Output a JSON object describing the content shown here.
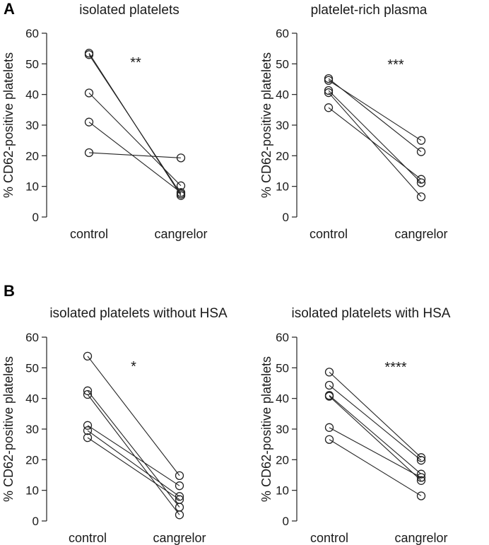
{
  "figure": {
    "panel_labels": [
      "A",
      "B"
    ]
  },
  "chart_data": [
    {
      "type": "scatter",
      "panel": "A",
      "title": "isolated platelets",
      "xlabel": "",
      "ylabel": "% CD62-positive platelets",
      "categories": [
        "control",
        "cangrelor"
      ],
      "ylim": [
        0,
        60
      ],
      "yticks": [
        0,
        10,
        20,
        30,
        40,
        50,
        60
      ],
      "significance": "**",
      "paired_values": [
        [
          53.5,
          7.0
        ],
        [
          53.0,
          7.5
        ],
        [
          40.5,
          10.2
        ],
        [
          31.0,
          8.0
        ],
        [
          21.0,
          19.3
        ]
      ]
    },
    {
      "type": "scatter",
      "panel": "A",
      "title": "platelet-rich plasma",
      "xlabel": "",
      "ylabel": "% CD62-positive platelets",
      "categories": [
        "control",
        "cangrelor"
      ],
      "ylim": [
        0,
        60
      ],
      "yticks": [
        0,
        10,
        20,
        30,
        40,
        50,
        60
      ],
      "significance": "***",
      "paired_values": [
        [
          45.2,
          21.3
        ],
        [
          44.6,
          25.0
        ],
        [
          41.3,
          11.2
        ],
        [
          40.6,
          6.6
        ],
        [
          35.7,
          12.3
        ]
      ]
    },
    {
      "type": "scatter",
      "panel": "B",
      "title": "isolated platelets without HSA",
      "xlabel": "",
      "ylabel": "% CD62-positive platelets",
      "categories": [
        "control",
        "cangrelor"
      ],
      "ylim": [
        0,
        60
      ],
      "yticks": [
        0,
        10,
        20,
        30,
        40,
        50,
        60
      ],
      "significance": "*",
      "paired_values": [
        [
          53.8,
          14.8
        ],
        [
          42.5,
          4.5
        ],
        [
          41.3,
          2.0
        ],
        [
          31.2,
          11.5
        ],
        [
          29.5,
          8.0
        ],
        [
          27.2,
          7.0
        ]
      ]
    },
    {
      "type": "scatter",
      "panel": "B",
      "title": "isolated platelets with HSA",
      "xlabel": "",
      "ylabel": "% CD62-positive platelets",
      "categories": [
        "control",
        "cangrelor"
      ],
      "ylim": [
        0,
        60
      ],
      "yticks": [
        0,
        10,
        20,
        30,
        40,
        50,
        60
      ],
      "significance": "****",
      "paired_values": [
        [
          48.6,
          20.7
        ],
        [
          44.3,
          19.8
        ],
        [
          41.0,
          15.3
        ],
        [
          40.7,
          13.2
        ],
        [
          30.5,
          14.2
        ],
        [
          26.6,
          8.2
        ]
      ]
    }
  ]
}
